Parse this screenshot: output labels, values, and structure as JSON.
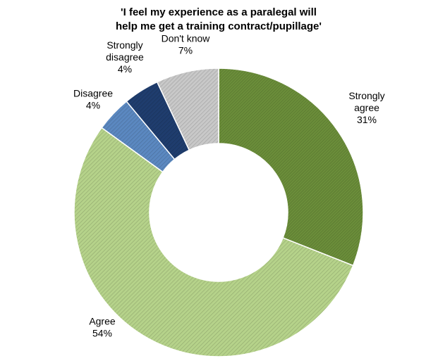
{
  "chart_data": {
    "type": "pie",
    "variant": "donut",
    "title_lines": [
      "'I feel my experience as a paralegal will",
      "help me get a training contract/pupillage'"
    ],
    "slices": [
      {
        "name_lines": [
          "Strongly",
          "agree"
        ],
        "value": 31,
        "value_label": "31%",
        "color": "#6b8e3a",
        "pattern": "dense-hatch"
      },
      {
        "name_lines": [
          "Agree"
        ],
        "value": 54,
        "value_label": "54%",
        "color": "#b5d28a",
        "pattern": "hatch"
      },
      {
        "name_lines": [
          "Disagree"
        ],
        "value": 4,
        "value_label": "4%",
        "color": "#5b88c0",
        "pattern": "hatch"
      },
      {
        "name_lines": [
          "Strongly",
          "disagree"
        ],
        "value": 4,
        "value_label": "4%",
        "color": "#1f3d6e",
        "pattern": "hatch"
      },
      {
        "name_lines": [
          "Don't know"
        ],
        "value": 7,
        "value_label": "7%",
        "color": "#c8c8c8",
        "pattern": "hatch"
      }
    ],
    "start_angle_deg": 0,
    "direction": "clockwise",
    "legend": "none",
    "labels": "outside"
  }
}
